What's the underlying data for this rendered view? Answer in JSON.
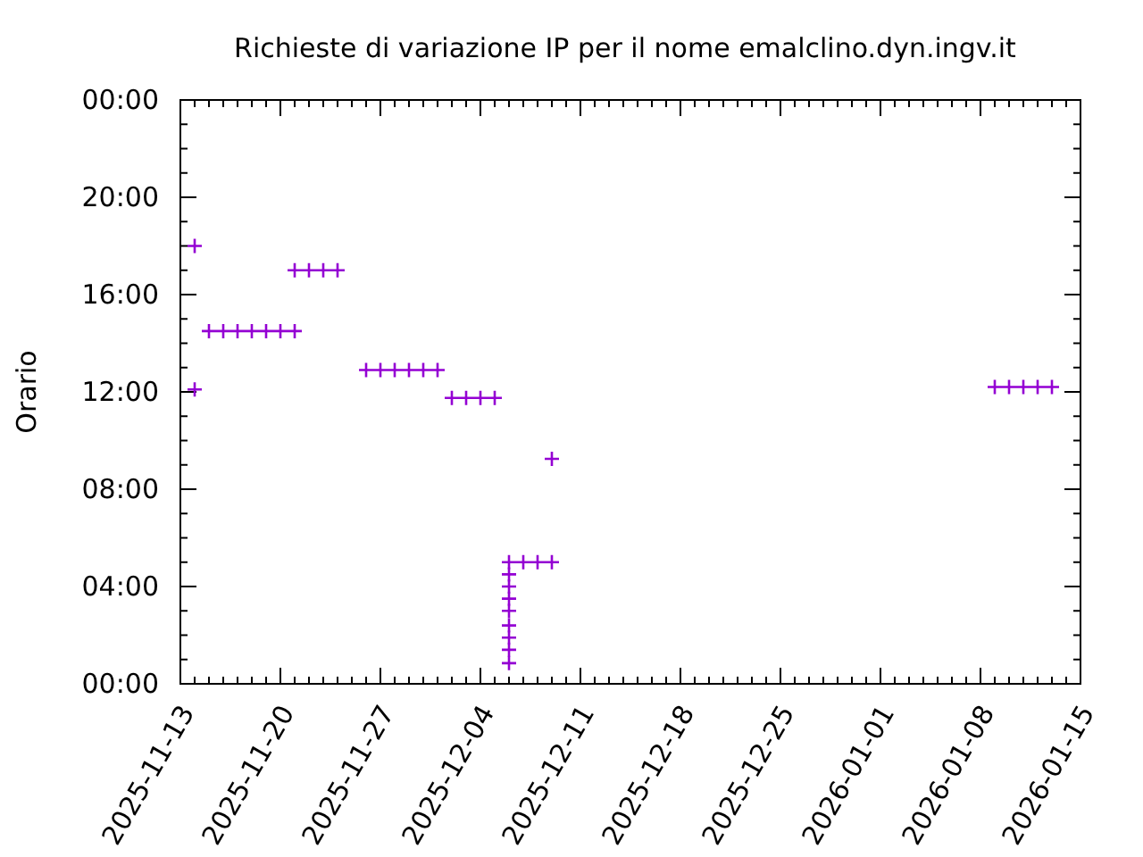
{
  "chart_data": {
    "type": "scatter",
    "title": "Richieste di variazione IP per il nome emalclino.dyn.ingv.it",
    "ylabel": "Orario",
    "x": [
      "2025-11-14",
      "2025-11-14",
      "2025-11-15",
      "2025-11-16",
      "2025-11-17",
      "2025-11-18",
      "2025-11-19",
      "2025-11-20",
      "2025-11-21",
      "2025-11-21",
      "2025-11-22",
      "2025-11-23",
      "2025-11-24",
      "2025-11-26",
      "2025-11-27",
      "2025-11-28",
      "2025-11-29",
      "2025-11-30",
      "2025-12-01",
      "2025-12-02",
      "2025-12-03",
      "2025-12-04",
      "2025-12-05",
      "2025-12-06",
      "2025-12-06",
      "2025-12-06",
      "2025-12-06",
      "2025-12-06",
      "2025-12-06",
      "2025-12-06",
      "2025-12-06",
      "2025-12-06",
      "2025-12-07",
      "2025-12-08",
      "2025-12-09",
      "2025-12-09",
      "2026-01-09",
      "2026-01-10",
      "2026-01-11",
      "2026-01-12",
      "2026-01-13"
    ],
    "series": [
      {
        "color": "#9400d3",
        "values": [
          18,
          12.1,
          14.5,
          14.5,
          14.5,
          14.5,
          14.5,
          14.5,
          14.5,
          17,
          17,
          17,
          17,
          12.9,
          12.9,
          12.9,
          12.9,
          12.9,
          12.9,
          11.75,
          11.75,
          11.75,
          11.75,
          5,
          4.5,
          4,
          3.5,
          3,
          2.4,
          1.9,
          1.4,
          0.85,
          5,
          5,
          5,
          9.25,
          12.2,
          12.2,
          12.2,
          12.2,
          12.2
        ]
      }
    ],
    "xlim": [
      "2025-11-13",
      "2026-01-15"
    ],
    "xticks": [
      {
        "value": "2025-11-13",
        "label": "2025-11-13"
      },
      {
        "value": "2025-11-20",
        "label": "2025-11-20"
      },
      {
        "value": "2025-11-27",
        "label": "2025-11-27"
      },
      {
        "value": "2025-12-04",
        "label": "2025-12-04"
      },
      {
        "value": "2025-12-11",
        "label": "2025-12-11"
      },
      {
        "value": "2025-12-18",
        "label": "2025-12-18"
      },
      {
        "value": "2025-12-25",
        "label": "2025-12-25"
      },
      {
        "value": "2026-01-01",
        "label": "2026-01-01"
      },
      {
        "value": "2026-01-08",
        "label": "2026-01-08"
      },
      {
        "value": "2026-01-15",
        "label": "2026-01-15"
      }
    ],
    "ylim": [
      0,
      24
    ],
    "yticks": [
      {
        "value": 0,
        "label": "00:00"
      },
      {
        "value": 4,
        "label": "04:00"
      },
      {
        "value": 8,
        "label": "08:00"
      },
      {
        "value": 12,
        "label": "12:00"
      },
      {
        "value": 16,
        "label": "16:00"
      },
      {
        "value": 20,
        "label": "20:00"
      },
      {
        "value": 24,
        "label": "00:00"
      }
    ],
    "marker": "cross"
  }
}
